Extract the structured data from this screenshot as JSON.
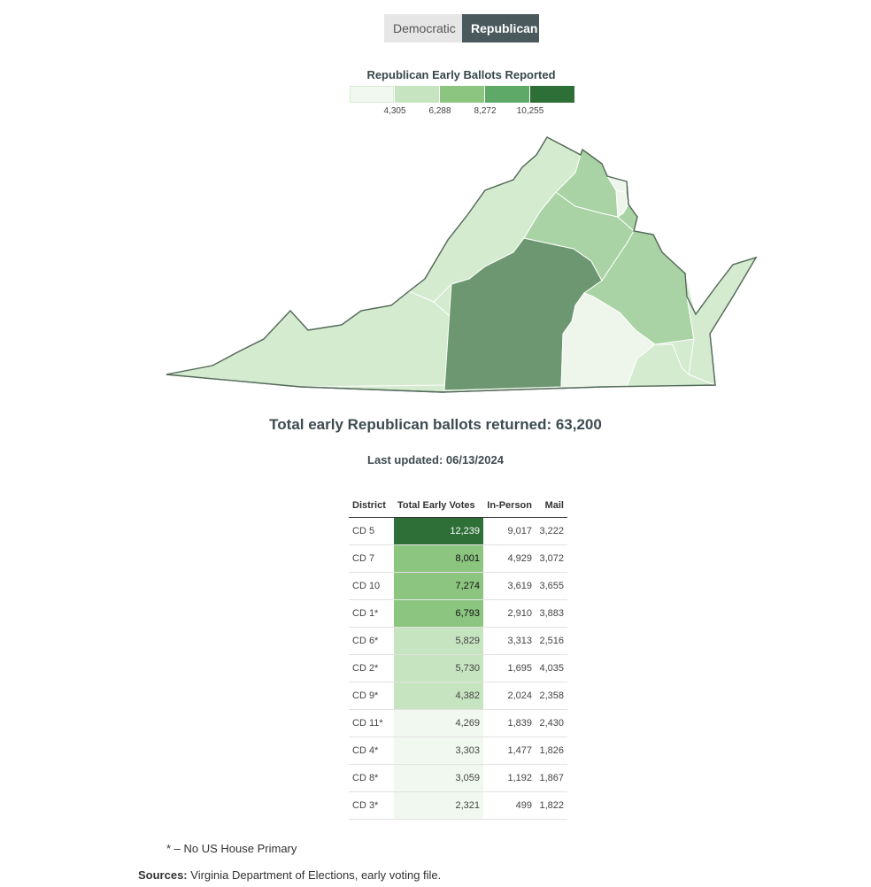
{
  "toggle": {
    "democratic_label": "Democratic",
    "republican_label": "Republican",
    "active": "Republican"
  },
  "legend": {
    "title": "Republican Early Ballots Reported",
    "ticks": [
      "4,305",
      "6,288",
      "8,272",
      "10,255"
    ],
    "colors": [
      "#f1f8ef",
      "#c7e4c0",
      "#8cc580",
      "#5fa968",
      "#2e6f37"
    ]
  },
  "map": {
    "region": "Virginia",
    "district_colors": {
      "CD 9": "#d4ebd0",
      "CD 6": "#d4ebd0",
      "CD 5": "#6c9770",
      "CD 7": "#a9d3a4",
      "CD 10": "#a9d3a4",
      "CD 1": "#a9d3a4",
      "CD 11": "#eef6ec",
      "CD 8": "#eef6ec",
      "CD 4": "#eef6ec",
      "CD 3": "#d4ebd0",
      "CD 2": "#d4ebd0"
    }
  },
  "summary": {
    "total_text": "Total early Republican ballots returned: 63,200",
    "updated_text": "Last updated: 06/13/2024"
  },
  "table": {
    "headers": [
      "District",
      "Total Early Votes",
      "In-Person",
      "Mail"
    ],
    "rows": [
      {
        "district": "CD 5",
        "total": "12,239",
        "in_person": "9,017",
        "mail": "3,222",
        "color": "#2e6f37",
        "text_color": "#ffffff"
      },
      {
        "district": "CD 7",
        "total": "8,001",
        "in_person": "4,929",
        "mail": "3,072",
        "color": "#8cc580",
        "text_color": "#111111"
      },
      {
        "district": "CD 10",
        "total": "7,274",
        "in_person": "3,619",
        "mail": "3,655",
        "color": "#8cc580",
        "text_color": "#111111"
      },
      {
        "district": "CD 1*",
        "total": "6,793",
        "in_person": "2,910",
        "mail": "3,883",
        "color": "#8cc580",
        "text_color": "#111111"
      },
      {
        "district": "CD 6*",
        "total": "5,829",
        "in_person": "3,313",
        "mail": "2,516",
        "color": "#c7e4c0",
        "text_color": "#444444"
      },
      {
        "district": "CD 2*",
        "total": "5,730",
        "in_person": "1,695",
        "mail": "4,035",
        "color": "#c7e4c0",
        "text_color": "#444444"
      },
      {
        "district": "CD 9*",
        "total": "4,382",
        "in_person": "2,024",
        "mail": "2,358",
        "color": "#c7e4c0",
        "text_color": "#444444"
      },
      {
        "district": "CD 11*",
        "total": "4,269",
        "in_person": "1,839",
        "mail": "2,430",
        "color": "#f1f8ef",
        "text_color": "#444444"
      },
      {
        "district": "CD 4*",
        "total": "3,303",
        "in_person": "1,477",
        "mail": "1,826",
        "color": "#f1f8ef",
        "text_color": "#444444"
      },
      {
        "district": "CD 8*",
        "total": "3,059",
        "in_person": "1,192",
        "mail": "1,867",
        "color": "#f1f8ef",
        "text_color": "#444444"
      },
      {
        "district": "CD 3*",
        "total": "2,321",
        "in_person": "499",
        "mail": "1,822",
        "color": "#f1f8ef",
        "text_color": "#444444"
      }
    ]
  },
  "footnote": "* – No US House Primary",
  "sources": {
    "label": "Sources:",
    "text": " Virginia Department of Elections, early voting file."
  }
}
